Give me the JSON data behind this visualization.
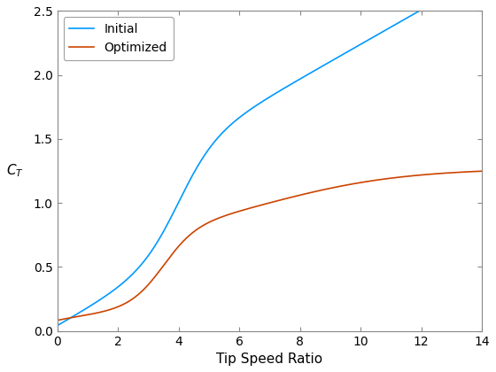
{
  "title": "",
  "xlabel": "Tip Speed Ratio",
  "ylabel": "C_T",
  "xlim": [
    0,
    14
  ],
  "ylim": [
    0,
    2.5
  ],
  "xticks": [
    0,
    2,
    4,
    6,
    8,
    10,
    12,
    14
  ],
  "yticks": [
    0,
    0.5,
    1.0,
    1.5,
    2.0,
    2.5
  ],
  "initial_color": "#0099FF",
  "optimized_color": "#CC4400",
  "line_width": 1.2,
  "legend_labels": [
    "Initial",
    "Optimized"
  ],
  "legend_loc": "upper left",
  "background_color": "#ffffff"
}
